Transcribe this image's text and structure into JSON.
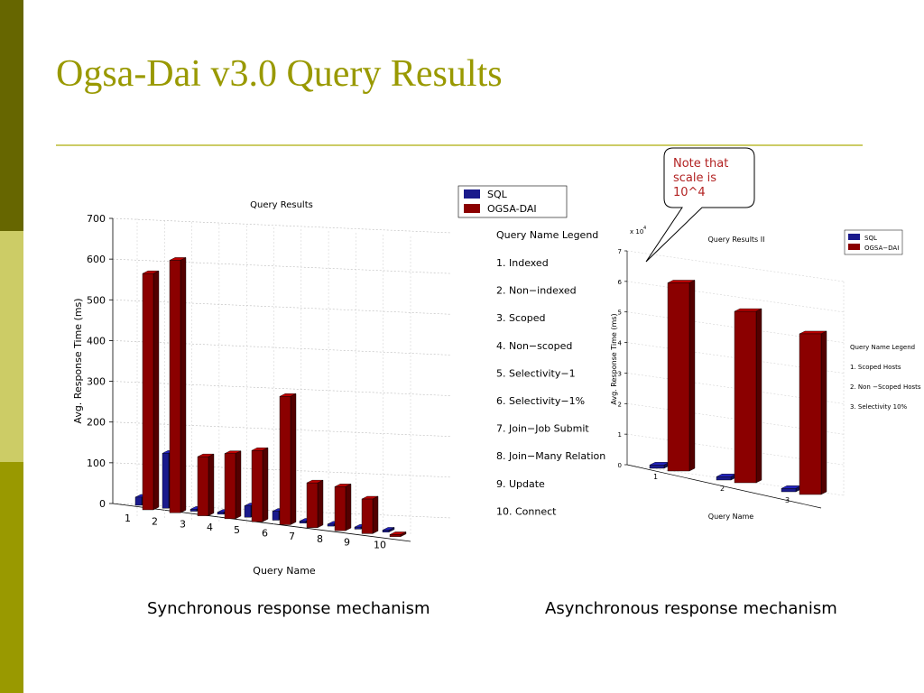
{
  "slide": {
    "title": "Ogsa-Dai v3.0 Query Results",
    "captions": {
      "left": "Synchronous response mechanism",
      "right": "Asynchronous response mechanism"
    },
    "callout": [
      "Note that",
      "scale is",
      "10^4"
    ]
  },
  "colors": {
    "sidebar_dark": "#666600",
    "sidebar_light": "#cccc66",
    "sidebar_mid": "#999900",
    "title": "#999900",
    "sql": "#1a1a8c",
    "ogsa": "#8b0000",
    "callout_text": "#b22222"
  },
  "chart_data": [
    {
      "type": "bar",
      "title": "Query Results",
      "xlabel": "Query Name",
      "ylabel": "Avg. Response Time (ms)",
      "ylim": [
        0,
        700
      ],
      "yticks": [
        "0",
        "100",
        "200",
        "300",
        "400",
        "500",
        "600",
        "700"
      ],
      "categories": [
        "1",
        "2",
        "3",
        "4",
        "5",
        "6",
        "7",
        "8",
        "9",
        "10"
      ],
      "series": [
        {
          "name": "SQL",
          "values": [
            20,
            135,
            5,
            5,
            28,
            22,
            5,
            5,
            5,
            5
          ]
        },
        {
          "name": "OGSA-DAI",
          "values": [
            580,
            620,
            145,
            160,
            175,
            315,
            110,
            108,
            85,
            5
          ]
        }
      ],
      "legend_position": "top-right",
      "query_legend": {
        "title": "Query Name Legend",
        "items": [
          "1. Indexed",
          "2. Non−indexed",
          "3. Scoped",
          "4. Non−scoped",
          "5. Selectivity−1",
          "6. Selectivity−1%",
          "7. Join−Job Submit",
          "8. Join−Many Relation",
          "9.  Update",
          "10. Connect"
        ]
      },
      "grid": true
    },
    {
      "type": "bar",
      "title": "Query Results II",
      "xlabel": "Query Name",
      "ylabel": "Avg. Response Time (ms)",
      "scale_label": "x 10",
      "scale_exp": "4",
      "ylim": [
        0,
        7
      ],
      "yticks": [
        "0",
        "1",
        "2",
        "3",
        "4",
        "5",
        "6",
        "7"
      ],
      "categories": [
        "1",
        "2",
        "3"
      ],
      "series": [
        {
          "name": "SQL",
          "values": [
            0.05,
            0.05,
            0.05
          ]
        },
        {
          "name": "OGSA−DAI",
          "values": [
            6.1,
            5.55,
            5.2
          ]
        }
      ],
      "legend_position": "top-right",
      "query_legend": {
        "title": "Query Name Legend",
        "items": [
          "1. Scoped Hosts",
          "2. Non −Scoped Hosts",
          "3. Selectivity 10%"
        ]
      },
      "grid": true
    }
  ]
}
